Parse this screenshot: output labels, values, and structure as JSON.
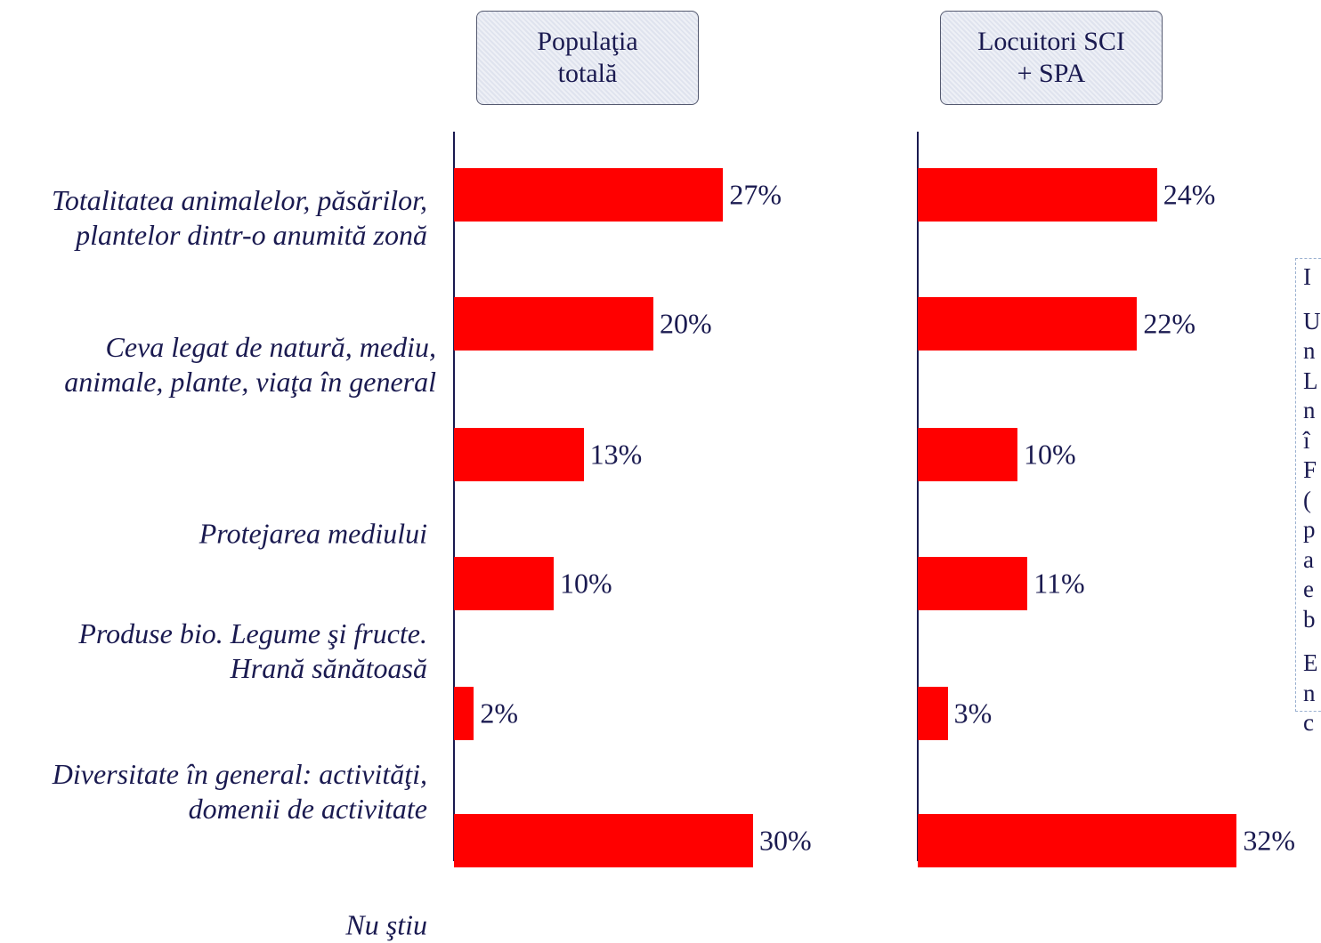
{
  "chart_data": {
    "type": "bar",
    "orientation": "horizontal",
    "categories": [
      "Totalitatea animalelor, păsărilor, plantelor dintr-o anumită zonă",
      "Ceva legat de natură, mediu, animale, plante, viaţa în general",
      "Protejarea mediului",
      "Produse bio. Legume şi fructe. Hrană sănătoasă",
      "Diversitate în general: activităţi, domenii de activitate",
      "Nu ştiu"
    ],
    "series": [
      {
        "name": "Populaţia totală",
        "color": "#ff0000",
        "values": [
          27,
          20,
          13,
          10,
          2,
          30
        ],
        "value_labels": [
          "27%",
          "20%",
          "13%",
          "10%",
          "2%",
          "30%"
        ]
      },
      {
        "name": "Locuitori SCI + SPA",
        "color": "#ff0000",
        "values": [
          24,
          22,
          10,
          11,
          3,
          32
        ],
        "value_labels": [
          "24%",
          "22%",
          "10%",
          "11%",
          "3%",
          "32%"
        ]
      }
    ]
  },
  "side_note": {
    "lines": [
      "I",
      "U",
      "n",
      "L",
      "n",
      "î",
      "F",
      "(",
      "p",
      "a",
      "e",
      "b",
      "E",
      "n",
      "c"
    ]
  }
}
